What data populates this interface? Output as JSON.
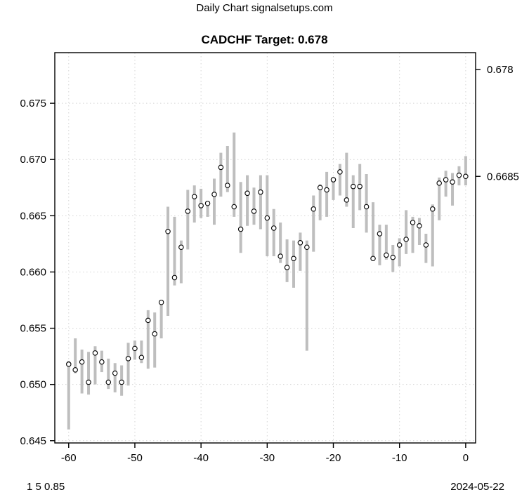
{
  "header": {
    "subtitle": "Daily Chart signalsetups.com",
    "title": "CADCHF Target: 0.678"
  },
  "footer": {
    "left": "1 5 0.85",
    "right": "2024-05-22"
  },
  "chart_data": {
    "type": "bar",
    "subtype": "high-low-close",
    "title": "CADCHF Target: 0.678",
    "xlabel": "",
    "ylabel": "",
    "xlim": [
      -62.1,
      1.5
    ],
    "ylim": [
      0.6448,
      0.6795
    ],
    "grid": true,
    "x_axis": {
      "ticks": [
        -60,
        -50,
        -40,
        -30,
        -20,
        -10,
        0
      ],
      "tick_labels": [
        "-60",
        "-50",
        "-40",
        "-30",
        "-20",
        "-10",
        "0"
      ]
    },
    "y_axis_left": {
      "ticks": [
        0.645,
        0.65,
        0.655,
        0.66,
        0.665,
        0.67,
        0.675
      ],
      "tick_labels": [
        "0.645",
        "0.650",
        "0.655",
        "0.660",
        "0.665",
        "0.670",
        "0.675"
      ]
    },
    "y_axis_right": {
      "ticks": [
        0.678,
        0.6685
      ],
      "tick_labels": [
        "0.678",
        "0.6685"
      ]
    },
    "x": [
      -60,
      -59,
      -58,
      -57,
      -56,
      -55,
      -54,
      -53,
      -52,
      -51,
      -50,
      -49,
      -48,
      -47,
      -46,
      -45,
      -44,
      -43,
      -42,
      -41,
      -40,
      -39,
      -38,
      -37,
      -36,
      -35,
      -34,
      -33,
      -32,
      -31,
      -30,
      -29,
      -28,
      -27,
      -26,
      -25,
      -24,
      -23,
      -22,
      -21,
      -20,
      -19,
      -18,
      -17,
      -16,
      -15,
      -14,
      -13,
      -12,
      -11,
      -10,
      -9,
      -8,
      -7,
      -6,
      -5,
      -4,
      -3,
      -2,
      -1,
      0
    ],
    "high": [
      0.6521,
      0.6541,
      0.6531,
      0.6529,
      0.6534,
      0.653,
      0.6523,
      0.6519,
      0.6517,
      0.6537,
      0.6539,
      0.6539,
      0.6566,
      0.6564,
      0.6574,
      0.6658,
      0.6649,
      0.6628,
      0.6673,
      0.6677,
      0.6674,
      0.6663,
      0.6683,
      0.6706,
      0.6712,
      0.6724,
      0.668,
      0.6686,
      0.6675,
      0.6686,
      0.6686,
      0.6656,
      0.6644,
      0.6629,
      0.6628,
      0.6635,
      0.6628,
      0.6668,
      0.6678,
      0.6689,
      0.6684,
      0.6696,
      0.6706,
      0.6686,
      0.6696,
      0.6687,
      0.6662,
      0.6642,
      0.6642,
      0.6624,
      0.663,
      0.6655,
      0.6649,
      0.6648,
      0.6634,
      0.666,
      0.6684,
      0.669,
      0.6688,
      0.6694,
      0.6703
    ],
    "low": [
      0.646,
      0.651,
      0.6492,
      0.6491,
      0.65,
      0.6511,
      0.6496,
      0.6493,
      0.649,
      0.6499,
      0.6522,
      0.6519,
      0.6514,
      0.6515,
      0.6541,
      0.6561,
      0.6588,
      0.659,
      0.662,
      0.6644,
      0.6648,
      0.6649,
      0.6642,
      0.6667,
      0.6671,
      0.6649,
      0.6617,
      0.6641,
      0.6642,
      0.6638,
      0.6614,
      0.6614,
      0.6608,
      0.6591,
      0.6586,
      0.6601,
      0.653,
      0.6618,
      0.6646,
      0.6649,
      0.6664,
      0.6668,
      0.6658,
      0.6639,
      0.6655,
      0.6635,
      0.661,
      0.6606,
      0.6611,
      0.66,
      0.6605,
      0.6616,
      0.6617,
      0.6624,
      0.6608,
      0.6605,
      0.6646,
      0.6667,
      0.6659,
      0.6677,
      0.6677
    ],
    "close": [
      0.6518,
      0.6513,
      0.652,
      0.6502,
      0.6528,
      0.652,
      0.6502,
      0.651,
      0.6502,
      0.6523,
      0.6532,
      0.6524,
      0.6557,
      0.6545,
      0.6573,
      0.6636,
      0.6595,
      0.6622,
      0.6654,
      0.6667,
      0.6659,
      0.6661,
      0.6669,
      0.6693,
      0.6677,
      0.6658,
      0.6638,
      0.667,
      0.6654,
      0.6671,
      0.6648,
      0.6639,
      0.6614,
      0.6604,
      0.6612,
      0.6626,
      0.6622,
      0.6656,
      0.6675,
      0.6673,
      0.6682,
      0.6689,
      0.6664,
      0.6676,
      0.6676,
      0.6658,
      0.6612,
      0.6634,
      0.6615,
      0.6613,
      0.6624,
      0.6629,
      0.6644,
      0.6641,
      0.6624,
      0.6656,
      0.6679,
      0.6682,
      0.668,
      0.6686,
      0.6685
    ],
    "colors": {
      "bar": "#bebebe",
      "close_marker_stroke": "#000000",
      "close_marker_fill": "#ffffff",
      "grid": "#d4d4d4",
      "box": "#000000",
      "text": "#000000",
      "background": "#ffffff"
    },
    "legend": null
  }
}
